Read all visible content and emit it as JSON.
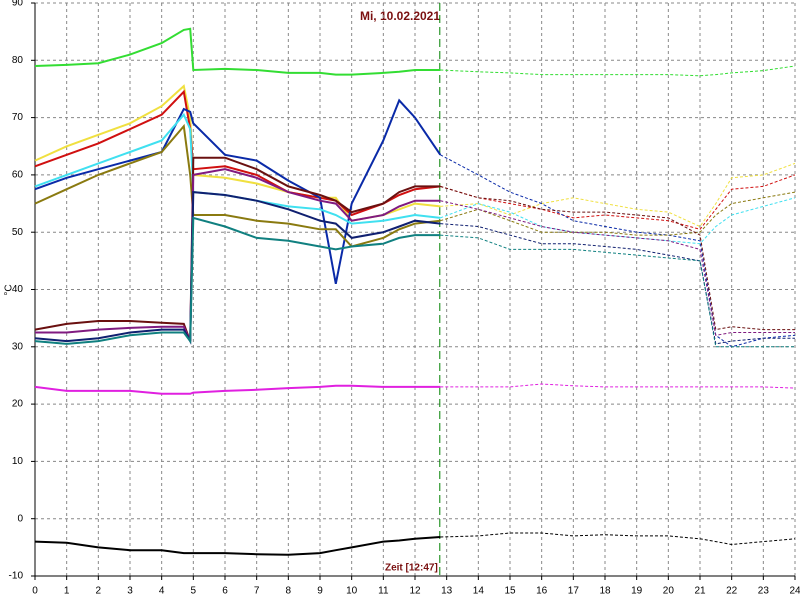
{
  "chart_data": {
    "type": "line",
    "title": "Mi, 10.02.2021",
    "y_label": "°C",
    "marker_label": "Zeit [12:47]",
    "marker_x": 12.783,
    "marker_color": "#008000",
    "grid": true,
    "xlim": [
      0,
      24
    ],
    "ylim": [
      -10,
      90
    ],
    "xticks": [
      0,
      1,
      2,
      3,
      4,
      5,
      6,
      7,
      8,
      9,
      10,
      11,
      12,
      13,
      14,
      15,
      16,
      17,
      18,
      19,
      20,
      21,
      22,
      23,
      24
    ],
    "yticks": [
      -10,
      0,
      10,
      20,
      30,
      40,
      50,
      60,
      70,
      80,
      90
    ],
    "x": [
      0,
      1,
      2,
      3,
      4,
      4.7,
      4.9,
      5,
      6,
      7,
      8,
      9,
      9.5,
      10,
      11,
      11.5,
      12,
      12.8,
      14,
      15,
      16,
      17,
      18,
      19,
      20,
      21,
      21.5,
      22,
      23,
      24
    ],
    "series": [
      {
        "color": "#33dd33",
        "values": [
          79,
          79.2,
          79.5,
          81,
          83,
          85.3,
          85.5,
          78.3,
          78.5,
          78.3,
          77.8,
          77.8,
          77.5,
          77.5,
          77.8,
          78,
          78.3,
          78.3,
          78,
          77.8,
          77.5,
          77.5,
          77.5,
          77.5,
          77.5,
          77.3,
          77.5,
          77.8,
          78.2,
          79
        ]
      },
      {
        "color": "#f0e040",
        "values": [
          62.5,
          65,
          67,
          69,
          72,
          75.5,
          70,
          60,
          59.5,
          58.5,
          57,
          56,
          56,
          52,
          53,
          54,
          55,
          54.5,
          55,
          53,
          55,
          56,
          55,
          54,
          53.5,
          51,
          55,
          59.5,
          60,
          62
        ]
      },
      {
        "color": "#d01010",
        "values": [
          61.5,
          63.5,
          65.5,
          68,
          70.5,
          74.5,
          68,
          61,
          61.5,
          60,
          57,
          56,
          55.5,
          53,
          55,
          56.5,
          57.5,
          58,
          56,
          55,
          54,
          52.5,
          53,
          52.5,
          52,
          50.5,
          54,
          57.5,
          58,
          60
        ]
      },
      {
        "color": "#0a2aa8",
        "values": [
          57.5,
          59.5,
          61,
          62.5,
          64,
          71.5,
          71,
          69,
          63.5,
          62.5,
          59,
          56,
          41,
          55,
          66,
          73,
          70,
          63.5,
          60,
          57,
          55,
          52,
          51,
          50,
          49.5,
          48.5,
          32,
          30,
          31.5,
          32
        ]
      },
      {
        "color": "#40e0f0",
        "values": [
          58,
          60,
          62,
          64,
          66,
          70.5,
          68,
          57,
          56.5,
          55.5,
          54.5,
          54,
          53,
          51.5,
          52,
          52.5,
          53,
          52.5,
          55,
          53.5,
          51,
          50,
          49.5,
          49,
          48.5,
          48,
          51,
          53,
          54.5,
          56
        ]
      },
      {
        "color": "#8a7a10",
        "values": [
          55,
          57.5,
          60,
          62,
          64,
          68.5,
          60,
          53,
          53,
          52,
          51.5,
          50.5,
          50.5,
          47.5,
          49,
          50.5,
          51.5,
          52,
          54,
          52,
          50,
          50,
          50,
          49.5,
          49.5,
          50,
          53,
          55,
          56,
          57
        ]
      },
      {
        "color": "#6a1010",
        "values": [
          33,
          34,
          34.5,
          34.5,
          34.2,
          34,
          31,
          63,
          63,
          61,
          58,
          56.5,
          55.5,
          53.5,
          55,
          57,
          58,
          58,
          56,
          55.5,
          54,
          53.5,
          53.5,
          53,
          52.5,
          49.5,
          33,
          33.5,
          33,
          33
        ]
      },
      {
        "color": "#801a80",
        "values": [
          32.5,
          32.5,
          33,
          33.3,
          33.5,
          33.5,
          31,
          60,
          61,
          59.5,
          57,
          55.5,
          55,
          52,
          53,
          54.5,
          55.5,
          55.5,
          54,
          52.5,
          51,
          50,
          49.5,
          49,
          48.5,
          47,
          32,
          32.5,
          32.5,
          32.5
        ]
      },
      {
        "color": "#102070",
        "values": [
          31.5,
          31,
          31.5,
          32.5,
          33,
          33,
          31,
          57,
          56.5,
          55.5,
          54,
          52,
          51.5,
          49,
          50,
          51,
          52,
          51.5,
          51,
          49.5,
          48,
          48,
          47.5,
          47,
          46,
          45,
          30.5,
          31,
          31.5,
          31.5
        ]
      },
      {
        "color": "#108080",
        "values": [
          31,
          30.5,
          31,
          32,
          32.5,
          32.5,
          31,
          52.5,
          51,
          49,
          48.5,
          47.5,
          47,
          47.5,
          48,
          49,
          49.5,
          49.5,
          49,
          47,
          47,
          47,
          46.5,
          46,
          45.5,
          45,
          30,
          30,
          30,
          30
        ]
      },
      {
        "color": "#e020e0",
        "values": [
          23,
          22.3,
          22.3,
          22.3,
          21.8,
          21.8,
          21.8,
          22,
          22.3,
          22.5,
          22.8,
          23,
          23.2,
          23.2,
          23,
          23,
          23,
          23,
          23,
          23,
          23.5,
          23.2,
          23,
          23,
          23,
          23,
          23,
          23,
          23,
          22.8
        ]
      },
      {
        "color": "#000000",
        "values": [
          -4,
          -4.2,
          -5,
          -5.5,
          -5.5,
          -6,
          -6,
          -6,
          -6,
          -6.2,
          -6.3,
          -6,
          -5.5,
          -5,
          -4,
          -3.8,
          -3.5,
          -3.2,
          -3,
          -2.5,
          -2.5,
          -3,
          -2.8,
          -3,
          -3,
          -3.5,
          -4,
          -4.5,
          -4,
          -3.5
        ]
      }
    ]
  }
}
